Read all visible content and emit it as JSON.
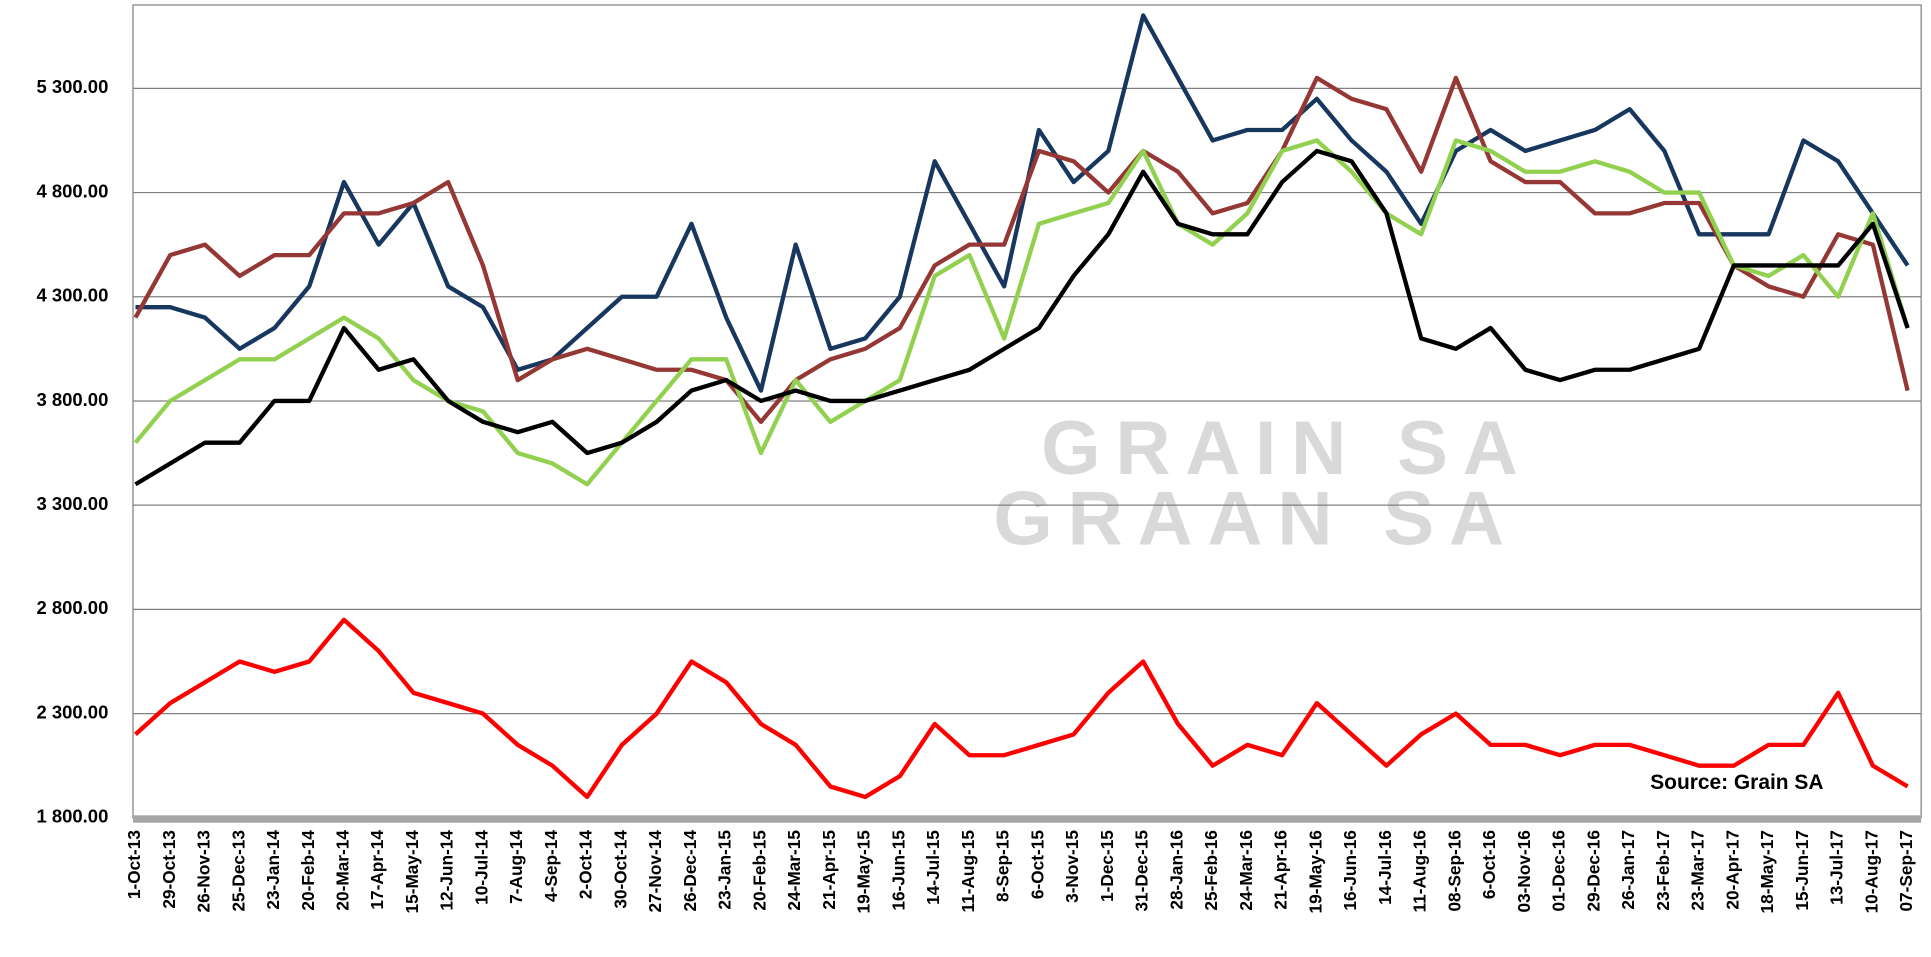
{
  "chart_data": {
    "type": "line",
    "categories": [
      "1-Oct-13",
      "29-Oct-13",
      "26-Nov-13",
      "25-Dec-13",
      "23-Jan-14",
      "20-Feb-14",
      "20-Mar-14",
      "17-Apr-14",
      "15-May-14",
      "12-Jun-14",
      "10-Jul-14",
      "7-Aug-14",
      "4-Sep-14",
      "2-Oct-14",
      "30-Oct-14",
      "27-Nov-14",
      "26-Dec-14",
      "23-Jan-15",
      "20-Feb-15",
      "24-Mar-15",
      "21-Apr-15",
      "19-May-15",
      "16-Jun-15",
      "14-Jul-15",
      "11-Aug-15",
      "8-Sep-15",
      "6-Oct-15",
      "3-Nov-15",
      "1-Dec-15",
      "31-Dec-15",
      "28-Jan-16",
      "25-Feb-16",
      "24-Mar-16",
      "21-Apr-16",
      "19-May-16",
      "16-Jun-16",
      "14-Jul-16",
      "11-Aug-16",
      "08-Sep-16",
      "6-Oct-16",
      "03-Nov-16",
      "01-Dec-16",
      "29-Dec-16",
      "26-Jan-17",
      "23-Feb-17",
      "23-Mar-17",
      "20-Apr-17",
      "18-May-17",
      "15-Jun-17",
      "13-Jul-17",
      "10-Aug-17",
      "07-Sep-17"
    ],
    "series": [
      {
        "color": "#17375e",
        "values": [
          4250,
          4250,
          4200,
          4050,
          4150,
          4350,
          4850,
          4550,
          4750,
          4350,
          4250,
          3950,
          4000,
          4150,
          4300,
          4300,
          4650,
          4200,
          3850,
          4550,
          4050,
          4100,
          4300,
          4950,
          4650,
          4350,
          5100,
          4850,
          5000,
          5650,
          5350,
          5050,
          5100,
          5100,
          5250,
          5050,
          4900,
          4650,
          5000,
          5100,
          5000,
          5050,
          5100,
          5200,
          5000,
          4600,
          4600,
          4600,
          5050,
          4950,
          4700,
          4450
        ]
      },
      {
        "color": "#953735",
        "values": [
          4200,
          4500,
          4550,
          4400,
          4500,
          4500,
          4700,
          4700,
          4750,
          4850,
          4450,
          3900,
          4000,
          4050,
          4000,
          3950,
          3950,
          3900,
          3700,
          3900,
          4000,
          4050,
          4150,
          4450,
          4550,
          4550,
          5000,
          4950,
          4800,
          5000,
          4900,
          4700,
          4750,
          5000,
          5350,
          5250,
          5200,
          4900,
          5350,
          4950,
          4850,
          4850,
          4700,
          4700,
          4750,
          4750,
          4450,
          4350,
          4300,
          4600,
          4550,
          3850
        ]
      },
      {
        "color": "#92d050",
        "values": [
          3600,
          3800,
          3900,
          4000,
          4000,
          4100,
          4200,
          4100,
          3900,
          3800,
          3750,
          3550,
          3500,
          3400,
          3600,
          3800,
          4000,
          4000,
          3550,
          3900,
          3700,
          3800,
          3900,
          4400,
          4500,
          4100,
          4650,
          4700,
          4750,
          5000,
          4650,
          4550,
          4700,
          5000,
          5050,
          4900,
          4700,
          4600,
          5050,
          5000,
          4900,
          4900,
          4950,
          4900,
          4800,
          4800,
          4450,
          4400,
          4500,
          4300,
          4700,
          4150
        ]
      },
      {
        "color": "#000000",
        "values": [
          3400,
          3500,
          3600,
          3600,
          3800,
          3800,
          4150,
          3950,
          4000,
          3800,
          3700,
          3650,
          3700,
          3550,
          3600,
          3700,
          3850,
          3900,
          3800,
          3850,
          3800,
          3800,
          3850,
          3900,
          3950,
          4050,
          4150,
          4400,
          4600,
          4900,
          4650,
          4600,
          4600,
          4850,
          5000,
          4950,
          4700,
          4100,
          4050,
          4150,
          3950,
          3900,
          3950,
          3950,
          4000,
          4050,
          4450,
          4450,
          4450,
          4450,
          4650,
          4150
        ]
      },
      {
        "color": "#ff0000",
        "values": [
          2200,
          2350,
          2450,
          2550,
          2500,
          2550,
          2750,
          2600,
          2400,
          2350,
          2300,
          2150,
          2050,
          1900,
          2150,
          2300,
          2550,
          2450,
          2250,
          2150,
          1950,
          1900,
          2000,
          2250,
          2100,
          2100,
          2150,
          2200,
          2400,
          2550,
          2250,
          2050,
          2150,
          2100,
          2350,
          2200,
          2050,
          2200,
          2300,
          2150,
          2150,
          2100,
          2150,
          2150,
          2100,
          2050,
          2050,
          2150,
          2150,
          2400,
          2050,
          1950
        ]
      }
    ],
    "ylim": [
      1800,
      5700
    ],
    "yticks": [
      {
        "value": 1800,
        "label": "1 800.00"
      },
      {
        "value": 2300,
        "label": "2 300.00"
      },
      {
        "value": 2800,
        "label": "2 800.00"
      },
      {
        "value": 3300,
        "label": "3 300.00"
      },
      {
        "value": 3800,
        "label": "3 800.00"
      },
      {
        "value": 4300,
        "label": "4 300.00"
      },
      {
        "value": 4800,
        "label": "4 800.00"
      },
      {
        "value": 5300,
        "label": "5 300.00"
      }
    ],
    "grid": true,
    "watermark": [
      "GRAIN SA",
      "GRAAN SA"
    ],
    "annotation": "Source: Grain SA"
  }
}
